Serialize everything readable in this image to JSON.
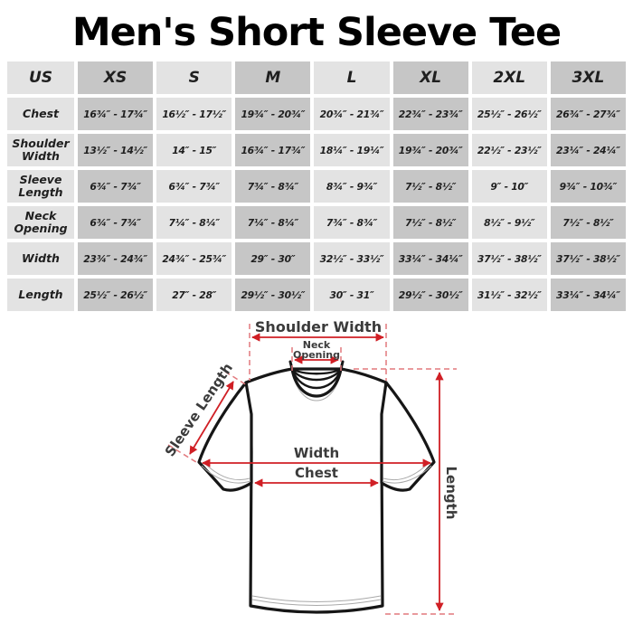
{
  "title": "Men's Short Sleeve Tee",
  "size_chart": {
    "header": [
      "US",
      "XS",
      "S",
      "M",
      "L",
      "XL",
      "2XL",
      "3XL"
    ],
    "rows": [
      {
        "label": "Chest",
        "values": [
          "16¾″ - 17¾″",
          "16½″ - 17½″",
          "19¾″ - 20¾″",
          "20¾″ - 21¾″",
          "22¾″ - 23¾″",
          "25½″ - 26½″",
          "26¾″ - 27¾″"
        ]
      },
      {
        "label": "Shoulder Width",
        "values": [
          "13½″ - 14½″",
          "14″ - 15″",
          "16¾″ - 17¾″",
          "18¼″ - 19¼″",
          "19¾″ - 20¾″",
          "22½″ - 23½″",
          "23¼″ - 24¼″"
        ]
      },
      {
        "label": "Sleeve Length",
        "values": [
          "6¾″ - 7¾″",
          "6¾″ - 7¾″",
          "7¾″ - 8¾″",
          "8¾″ - 9¾″",
          "7½″ - 8½″",
          "9″ - 10″",
          "9¾″ - 10¾″"
        ]
      },
      {
        "label": "Neck Opening",
        "values": [
          "6¾″ - 7¾″",
          "7¼″ - 8¼″",
          "7¼″ - 8¼″",
          "7¾″ - 8¾″",
          "7½″ - 8½″",
          "8½″ - 9½″",
          "7½″ - 8½″"
        ]
      },
      {
        "label": "Width",
        "values": [
          "23¾″ - 24¾″",
          "24¾″ - 25¾″",
          "29″ - 30″",
          "32½″ - 33½″",
          "33¼″ - 34¼″",
          "37½″ - 38½″",
          "37½″ - 38½″"
        ]
      },
      {
        "label": "Length",
        "values": [
          "25½″ - 26½″",
          "27″ - 28″",
          "29½″ - 30½″",
          "30″ - 31″",
          "29½″ - 30½″",
          "31½″ - 32½″",
          "33¼″ - 34¼″"
        ]
      }
    ]
  },
  "diagram": {
    "labels": {
      "shoulder_width": "Shoulder Width",
      "neck_line1": "Neck",
      "neck_line2": "Opening",
      "sleeve_length": "Sleeve Length",
      "width": "Width",
      "chest": "Chest",
      "length": "Length"
    }
  },
  "colors": {
    "accent_red": "#d01f25",
    "dash_red": "#e2797d",
    "cell_light": "#e3e3e3",
    "cell_dark": "#c6c6c6",
    "label_gray": "#3b3b3b",
    "outline_black": "#161616"
  }
}
